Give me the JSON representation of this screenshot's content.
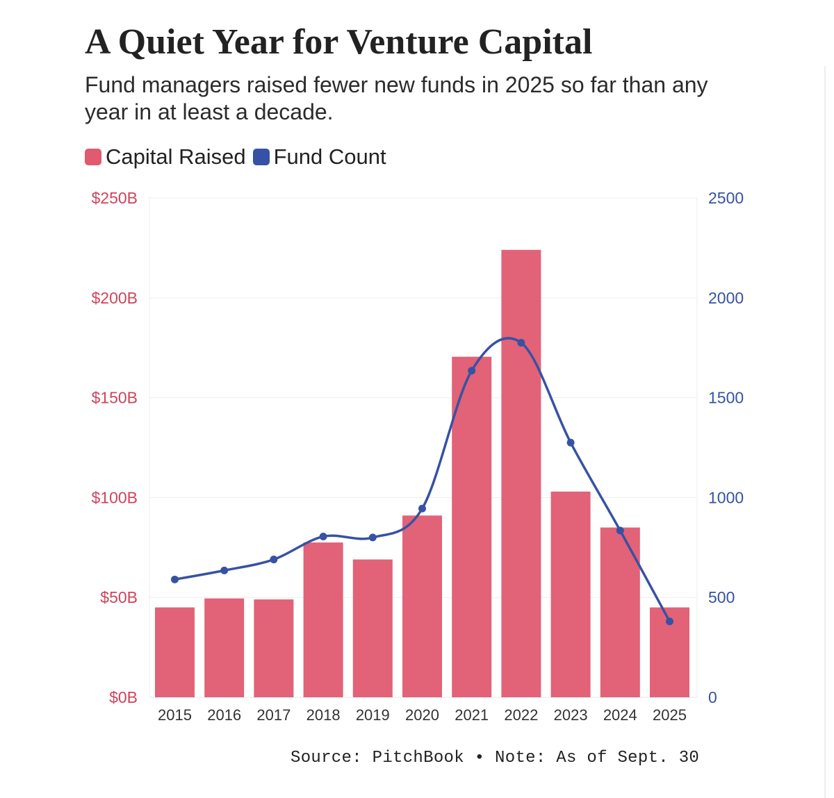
{
  "header": {
    "title": "A Quiet Year for Venture Capital",
    "subtitle": "Fund managers raised fewer new funds in 2025 so far than any year in at least a decade."
  },
  "legend": {
    "items": [
      {
        "label": "Capital Raised",
        "color": "#e05a70"
      },
      {
        "label": "Fund Count",
        "color": "#3652a4"
      }
    ]
  },
  "footer": {
    "source": "Source: PitchBook • Note: As of Sept. 30"
  },
  "chart_data": {
    "type": "bar+line",
    "title": "A Quiet Year for Venture Capital",
    "categories": [
      "2015",
      "2016",
      "2017",
      "2018",
      "2019",
      "2020",
      "2021",
      "2022",
      "2023",
      "2024",
      "2025"
    ],
    "series": [
      {
        "name": "Capital Raised",
        "type": "bar",
        "axis": "left",
        "unit": "$B",
        "color": "#e05a70",
        "values": [
          45,
          49.5,
          49,
          77.5,
          69,
          91,
          170.5,
          224,
          103,
          85,
          45
        ]
      },
      {
        "name": "Fund Count",
        "type": "line",
        "axis": "right",
        "color": "#3652a4",
        "values": [
          590,
          635,
          690,
          805,
          800,
          945,
          1635,
          1775,
          1275,
          835,
          380
        ]
      }
    ],
    "left_axis": {
      "min": 0,
      "max": 250,
      "ticks": [
        0,
        50,
        100,
        150,
        200,
        250
      ],
      "tick_labels": [
        "$0B",
        "$50B",
        "$100B",
        "$150B",
        "$200B",
        "$250B"
      ],
      "color": "#d0435b"
    },
    "right_axis": {
      "min": 0,
      "max": 2500,
      "ticks": [
        0,
        500,
        1000,
        1500,
        2000,
        2500
      ],
      "tick_labels": [
        "0",
        "500",
        "1000",
        "1500",
        "2000",
        "2500"
      ],
      "color": "#3652a4"
    },
    "grid": true,
    "legend_position": "top-left"
  }
}
